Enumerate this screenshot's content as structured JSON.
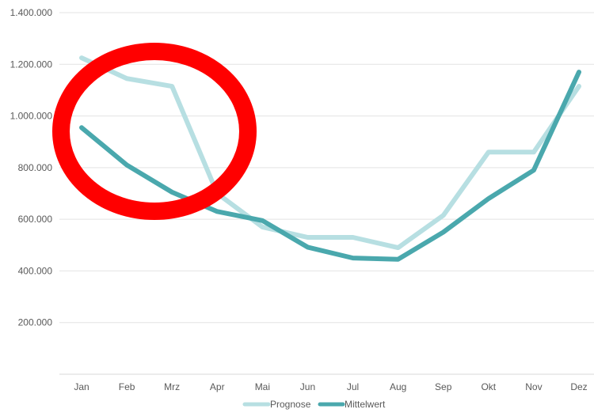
{
  "chart_data": {
    "type": "line",
    "categories": [
      "Jan",
      "Feb",
      "Mrz",
      "Apr",
      "Mai",
      "Jun",
      "Jul",
      "Aug",
      "Sep",
      "Okt",
      "Nov",
      "Dez"
    ],
    "y_ticks": [
      "200.000",
      "400.000",
      "600.000",
      "800.000",
      "1.000.000",
      "1.200.000",
      "1.400.000"
    ],
    "y_tick_values": [
      200000,
      400000,
      600000,
      800000,
      1000000,
      1200000,
      1400000
    ],
    "ylim": [
      0,
      1400000
    ],
    "grid": true,
    "legend_position": "bottom",
    "series": [
      {
        "name": "Prognose",
        "color": "#b7dfe2",
        "values": [
          1225000,
          1145000,
          1115000,
          700000,
          570000,
          530000,
          530000,
          490000,
          615000,
          860000,
          860000,
          1115000
        ]
      },
      {
        "name": "Mittelwert",
        "color": "#4aa8ad",
        "values": [
          955000,
          810000,
          705000,
          630000,
          595000,
          492000,
          450000,
          445000,
          550000,
          680000,
          790000,
          1170000
        ]
      }
    ],
    "annotation": {
      "shape": "ellipse",
      "color": "#ff0000"
    }
  }
}
